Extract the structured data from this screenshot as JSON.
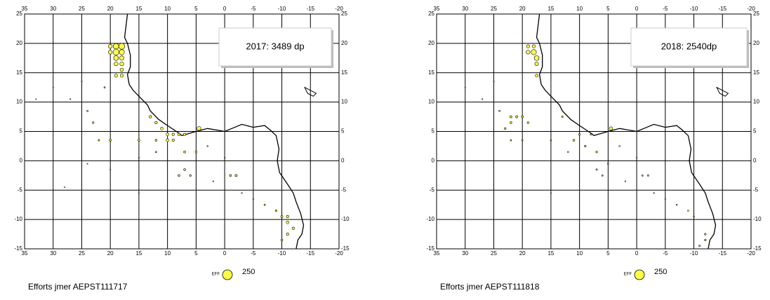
{
  "chart_data": [
    {
      "type": "scatter",
      "annotation": "2017: 3489 dp",
      "caption": "Efforts jmer AEPST111717",
      "xlim": [
        35,
        -20
      ],
      "ylim": [
        -15,
        25
      ],
      "xticks": [
        35,
        30,
        25,
        20,
        15,
        10,
        5,
        0,
        -5,
        -10,
        -15,
        -20
      ],
      "yticks": [
        -15,
        -10,
        -5,
        0,
        5,
        10,
        15,
        20,
        25
      ],
      "grid": true,
      "color": "#ffff44",
      "size_legend": {
        "label": "EFF",
        "value": 250
      },
      "x": [
        19,
        18,
        20,
        19,
        18,
        20,
        19,
        18,
        19,
        18,
        18,
        19,
        18,
        4.5,
        13,
        12,
        11,
        10,
        9,
        8,
        7,
        10,
        9,
        12,
        15,
        20,
        7,
        5,
        -2,
        -1,
        7,
        8,
        6,
        -11,
        -12,
        -11,
        -10,
        -11,
        -10,
        -9,
        23,
        21,
        25,
        27,
        30,
        24,
        22,
        -5,
        -7,
        0,
        2,
        15,
        28,
        33,
        20,
        24,
        15,
        12,
        3,
        -3
      ],
      "y": [
        19.5,
        19.5,
        19.5,
        18.5,
        18.5,
        18.5,
        17.5,
        17.5,
        16.5,
        16.5,
        15.5,
        14.5,
        14.5,
        5.5,
        7.5,
        6.5,
        5.5,
        4.5,
        4.5,
        4.5,
        4.5,
        3.5,
        3.5,
        3.5,
        3.5,
        3.5,
        1.5,
        1.5,
        -2.5,
        -2.5,
        -1.5,
        -2.5,
        -2.5,
        -10.5,
        -11.5,
        -12.5,
        -9.5,
        -9.5,
        -13.5,
        -8.5,
        6.5,
        12.5,
        13.5,
        10.5,
        12.5,
        8.5,
        3.5,
        -6.5,
        -7.5,
        0.5,
        -3.5,
        -5.5,
        -4.5,
        10.5,
        -1.5,
        -0.5,
        0.5,
        1.5,
        2.5,
        -5.5
      ],
      "size": [
        80,
        90,
        40,
        90,
        70,
        40,
        60,
        50,
        40,
        40,
        30,
        25,
        25,
        40,
        15,
        15,
        20,
        20,
        15,
        15,
        15,
        20,
        15,
        10,
        10,
        10,
        10,
        10,
        12,
        10,
        10,
        10,
        8,
        20,
        15,
        15,
        12,
        15,
        10,
        8,
        8,
        5,
        4,
        3,
        2,
        5,
        6,
        4,
        5,
        4,
        3,
        2,
        1,
        1,
        3,
        2,
        3,
        5,
        4,
        3
      ]
    },
    {
      "type": "scatter",
      "annotation": "2018: 2540dp",
      "caption": "Efforts jmer AEPST111818",
      "xlim": [
        35,
        -20
      ],
      "ylim": [
        -15,
        25
      ],
      "xticks": [
        35,
        30,
        25,
        20,
        15,
        10,
        5,
        0,
        -5,
        -10,
        -15,
        -20
      ],
      "yticks": [
        -15,
        -10,
        -5,
        0,
        5,
        10,
        15,
        20,
        25
      ],
      "grid": true,
      "color": "#ffff44",
      "size_legend": {
        "label": "EFF",
        "value": 250
      },
      "x": [
        18,
        17.5,
        19,
        17.5,
        19,
        18,
        17.5,
        4.5,
        22,
        21,
        20,
        22,
        23,
        19,
        11,
        9,
        7,
        5,
        -12,
        -12,
        -11,
        -10,
        13,
        10,
        8,
        15,
        20,
        25,
        27,
        30,
        24,
        22,
        -5,
        -7,
        0,
        2,
        15,
        -2,
        -1,
        7,
        6,
        12,
        3,
        -3,
        -9
      ],
      "y": [
        18.5,
        17.5,
        18.5,
        16.5,
        19.5,
        19.5,
        14.5,
        5.5,
        7.5,
        7.5,
        7.5,
        6.5,
        5.5,
        6.5,
        3.5,
        2.5,
        1.5,
        -0.5,
        -12.5,
        -13.5,
        -14.5,
        -9.5,
        7.5,
        4.5,
        4.5,
        3.5,
        3.5,
        13.5,
        10.5,
        12.5,
        8.5,
        3.5,
        -6.5,
        -7.5,
        0.5,
        -3.5,
        -5.5,
        -2.5,
        -2.5,
        -1.5,
        -2.5,
        1.5,
        2.5,
        -5.5,
        -8.5
      ],
      "size": [
        70,
        60,
        40,
        35,
        25,
        25,
        20,
        30,
        12,
        12,
        10,
        10,
        8,
        8,
        10,
        8,
        8,
        6,
        8,
        8,
        6,
        5,
        6,
        8,
        6,
        5,
        5,
        4,
        3,
        2,
        5,
        5,
        3,
        4,
        3,
        3,
        2,
        6,
        5,
        6,
        5,
        4,
        4,
        3,
        4
      ]
    }
  ]
}
